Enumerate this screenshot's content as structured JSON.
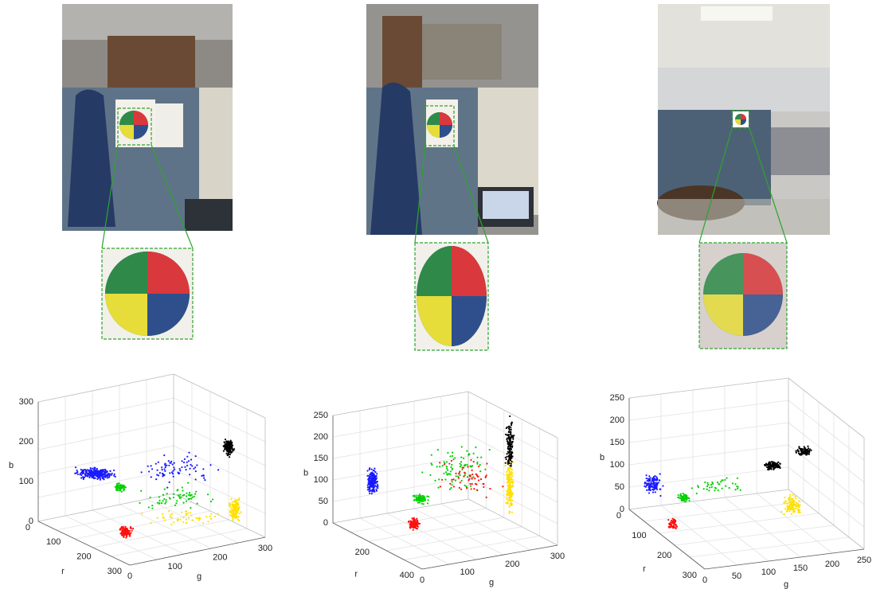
{
  "panels": [
    {
      "plot": {
        "b_label": "b",
        "r_label": "r",
        "g_label": "g",
        "b_ticks": [
          0,
          100,
          200,
          300
        ],
        "r_ticks": [
          0,
          100,
          200,
          300
        ],
        "g_ticks": [
          0,
          100,
          200,
          300
        ]
      }
    },
    {
      "plot": {
        "b_label": "b",
        "r_label": "r",
        "g_label": "g",
        "b_ticks": [
          0,
          50,
          100,
          150,
          200,
          250
        ],
        "r_ticks": [
          200,
          400
        ],
        "g_ticks": [
          0,
          100,
          200,
          300
        ]
      }
    },
    {
      "plot": {
        "b_label": "b",
        "r_label": "r",
        "g_label": "g",
        "b_ticks": [
          0,
          50,
          100,
          150,
          200,
          250
        ],
        "r_ticks": [
          0,
          100,
          200,
          300
        ],
        "g_ticks": [
          0,
          50,
          100,
          150,
          200,
          250
        ]
      }
    }
  ]
}
